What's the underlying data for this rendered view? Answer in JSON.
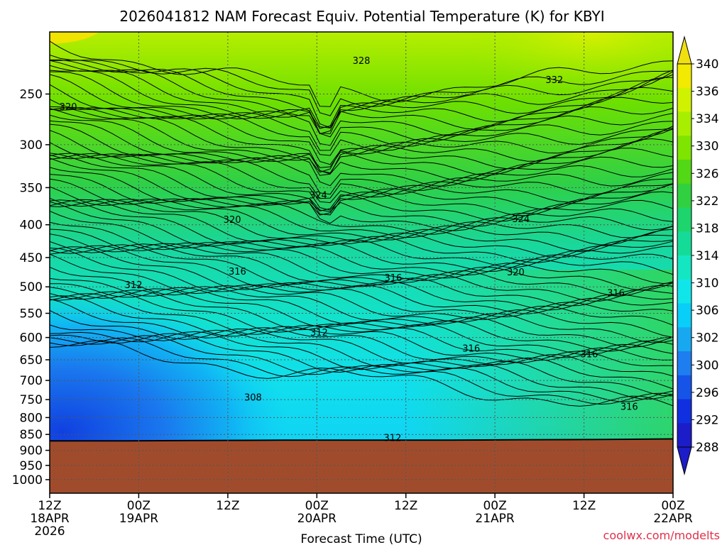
{
  "chart_data": {
    "type": "contour",
    "title": "2026041812 NAM Forecast Equiv. Potential Temperature (K) for KBYI",
    "xlabel": "Forecast Time (UTC)",
    "ylabel": "",
    "y_scale": "log-pressure",
    "y_range_hPa": [
      1050,
      200
    ],
    "x_range": [
      "18APR 12Z",
      "22APR 00Z"
    ],
    "y_ticks": [
      "250",
      "300",
      "350",
      "400",
      "450",
      "500",
      "550",
      "600",
      "650",
      "700",
      "750",
      "800",
      "850",
      "900",
      "950",
      "1000"
    ],
    "y_tick_values": [
      250,
      300,
      350,
      400,
      450,
      500,
      550,
      600,
      650,
      700,
      750,
      800,
      850,
      900,
      950,
      1000
    ],
    "x_ticks": [
      {
        "top": "12Z",
        "mid": "18APR",
        "bottom": "2026"
      },
      {
        "top": "00Z",
        "mid": "19APR",
        "bottom": ""
      },
      {
        "top": "12Z",
        "mid": "",
        "bottom": ""
      },
      {
        "top": "00Z",
        "mid": "20APR",
        "bottom": ""
      },
      {
        "top": "12Z",
        "mid": "",
        "bottom": ""
      },
      {
        "top": "00Z",
        "mid": "21APR",
        "bottom": ""
      },
      {
        "top": "12Z",
        "mid": "",
        "bottom": ""
      },
      {
        "top": "00Z",
        "mid": "22APR",
        "bottom": ""
      }
    ],
    "x_tick_hours": [
      0,
      12,
      24,
      36,
      48,
      60,
      72,
      84
    ],
    "colorbar": {
      "labels": [
        "340",
        "336",
        "334",
        "330",
        "326",
        "322",
        "318",
        "314",
        "310",
        "306",
        "302",
        "300",
        "296",
        "292",
        "288"
      ],
      "values": [
        340,
        336,
        334,
        330,
        326,
        322,
        318,
        314,
        310,
        306,
        302,
        300,
        296,
        292,
        288
      ],
      "bands": [
        "#f2ea00",
        "#d0f200",
        "#a8ee00",
        "#7ee400",
        "#52d815",
        "#30d040",
        "#1ed46c",
        "#14dc98",
        "#14e6c2",
        "#10e6ea",
        "#08cef8",
        "#18a8f0",
        "#1e7ef0",
        "#1654e8",
        "#1030e0",
        "#1c1cc8"
      ],
      "over_color": "#f0e010",
      "under_color": "#1c1cc8"
    },
    "contour_labels": [
      {
        "text": "328",
        "hour": 42,
        "p": 222
      },
      {
        "text": "332",
        "hour": 68,
        "p": 238
      },
      {
        "text": "320",
        "hour": 2.5,
        "p": 262
      },
      {
        "text": "324",
        "hour": 36.2,
        "p": 360
      },
      {
        "text": "324",
        "hour": 63.5,
        "p": 392
      },
      {
        "text": "320",
        "hour": 24.6,
        "p": 393
      },
      {
        "text": "316",
        "hour": 25.3,
        "p": 474
      },
      {
        "text": "316",
        "hour": 46.3,
        "p": 485
      },
      {
        "text": "320",
        "hour": 62.8,
        "p": 475
      },
      {
        "text": "312",
        "hour": 11.3,
        "p": 497
      },
      {
        "text": "316",
        "hour": 76.3,
        "p": 512
      },
      {
        "text": "312",
        "hour": 36.3,
        "p": 590
      },
      {
        "text": "316",
        "hour": 56.8,
        "p": 625
      },
      {
        "text": "316",
        "hour": 72.7,
        "p": 638
      },
      {
        "text": "308",
        "hour": 27.4,
        "p": 745
      },
      {
        "text": "316",
        "hour": 78.1,
        "p": 770
      },
      {
        "text": "312",
        "hour": 46.2,
        "p": 862
      }
    ],
    "ground": {
      "color": "#a04c2c",
      "surface_pressure_hPa": [
        872,
        872,
        871,
        870,
        870,
        870,
        869,
        868,
        866
      ]
    },
    "grid": true
  },
  "credit": "coolwx.com/modelts"
}
